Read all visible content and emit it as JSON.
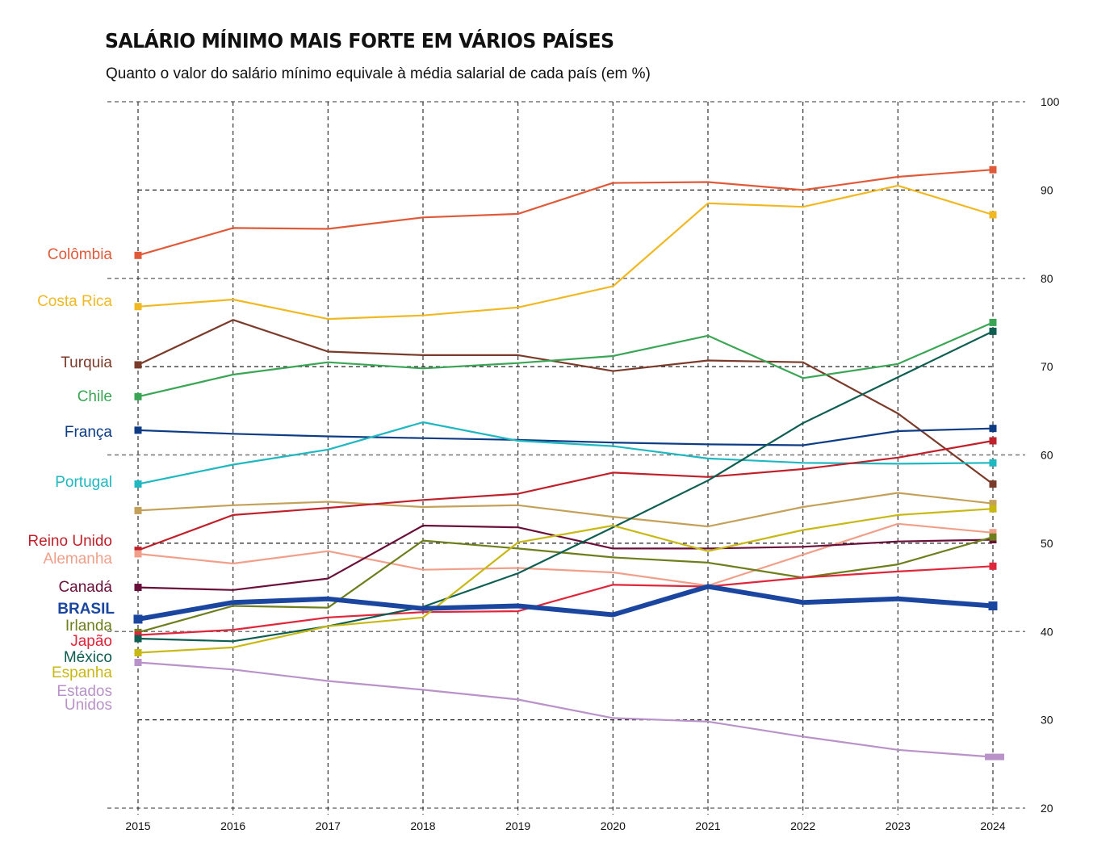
{
  "header": {
    "title": "SALÁRIO MÍNIMO MAIS FORTE EM VÁRIOS PAÍSES",
    "subtitle": "Quanto o valor do salário mínimo equivale à média salarial de cada país (em %)"
  },
  "chart_data": {
    "type": "line",
    "title": "SALÁRIO MÍNIMO MAIS FORTE EM VÁRIOS PAÍSES",
    "subtitle": "Quanto o valor do salário mínimo equivale à média salarial de cada país (em %)",
    "xlabel": "",
    "ylabel": "",
    "x": [
      "2015",
      "2016",
      "2017",
      "2018",
      "2019",
      "2020",
      "2021",
      "2022",
      "2023",
      "2024"
    ],
    "ylim": [
      20,
      100
    ],
    "yticks": [
      "100",
      "90",
      "80",
      "70",
      "60",
      "50",
      "40",
      "30",
      "20"
    ],
    "grid": true,
    "legend": "left (direct labels)",
    "series": [
      {
        "name": "Colômbia",
        "color": "#e05a3a",
        "values": [
          82.6,
          85.7,
          85.6,
          86.9,
          87.3,
          90.8,
          90.9,
          90.0,
          91.5,
          92.3
        ]
      },
      {
        "name": "Costa Rica",
        "color": "#f0b823",
        "values": [
          76.8,
          77.6,
          75.4,
          75.8,
          76.7,
          79.1,
          88.5,
          88.1,
          90.5,
          87.2
        ]
      },
      {
        "name": "Turquia",
        "color": "#7b3b2a",
        "values": [
          70.2,
          75.3,
          71.7,
          71.3,
          71.3,
          69.5,
          70.7,
          70.5,
          64.7,
          56.7
        ]
      },
      {
        "name": "Chile",
        "color": "#3aa655",
        "values": [
          66.6,
          69.1,
          70.5,
          69.8,
          70.4,
          71.2,
          73.5,
          68.7,
          70.3,
          75.0
        ]
      },
      {
        "name": "França",
        "color": "#0d3c85",
        "values": [
          62.8,
          62.4,
          62.1,
          61.9,
          61.7,
          61.4,
          61.2,
          61.1,
          62.7,
          63.0
        ]
      },
      {
        "name": "Portugal",
        "color": "#1fb8c0",
        "values": [
          56.7,
          58.9,
          60.6,
          63.7,
          61.6,
          61.0,
          59.6,
          59.1,
          59.0,
          59.1
        ]
      },
      {
        "name": "",
        "color": "#c4a15a",
        "values": [
          53.7,
          54.3,
          54.7,
          54.1,
          54.3,
          53.0,
          51.9,
          54.1,
          55.7,
          54.5
        ]
      },
      {
        "name": "Reino Unido",
        "color": "#c0202a",
        "values": [
          49.2,
          53.2,
          54.0,
          54.9,
          55.6,
          58.0,
          57.5,
          58.4,
          59.7,
          61.6
        ]
      },
      {
        "name": "Alemanha",
        "color": "#f0a08a",
        "values": [
          48.8,
          47.7,
          49.1,
          47.0,
          47.2,
          46.7,
          45.2,
          48.7,
          52.2,
          51.2
        ]
      },
      {
        "name": "Canadá",
        "color": "#6a0f3a",
        "values": [
          45.0,
          44.7,
          46.0,
          52.0,
          51.8,
          49.4,
          49.4,
          49.6,
          50.2,
          50.4
        ]
      },
      {
        "name": "Irlanda",
        "color": "#6e7e1c",
        "values": [
          39.9,
          42.9,
          42.7,
          50.3,
          49.4,
          48.4,
          47.8,
          46.1,
          47.6,
          50.7
        ]
      },
      {
        "name": "Japão",
        "color": "#e0263a",
        "values": [
          39.6,
          40.2,
          41.6,
          42.2,
          42.3,
          45.3,
          45.1,
          46.1,
          46.8,
          47.4
        ]
      },
      {
        "name": "México",
        "color": "#0e5e52",
        "values": [
          39.2,
          38.9,
          40.6,
          42.8,
          46.6,
          51.8,
          57.1,
          63.6,
          68.8,
          74.0
        ]
      },
      {
        "name": "Espanha",
        "color": "#c8b814",
        "values": [
          37.6,
          38.2,
          40.6,
          41.6,
          50.1,
          52.0,
          49.1,
          51.5,
          53.2,
          53.9
        ]
      },
      {
        "name": "Estados Unidos",
        "color": "#b892c8",
        "values": [
          36.5,
          35.7,
          34.4,
          33.4,
          32.3,
          30.2,
          29.8,
          28.1,
          26.6,
          25.8
        ]
      },
      {
        "name": "BRASIL",
        "color": "#1b46a0",
        "highlight": true,
        "values": [
          41.4,
          43.3,
          43.7,
          42.6,
          42.9,
          41.9,
          45.1,
          43.3,
          43.7,
          42.9
        ]
      }
    ],
    "labels": [
      {
        "text": "Colômbia",
        "series": "Colômbia"
      },
      {
        "text": "Costa Rica",
        "series": "Costa Rica"
      },
      {
        "text": "Turquia",
        "series": "Turquia"
      },
      {
        "text": "Chile",
        "series": "Chile"
      },
      {
        "text": "França",
        "series": "França"
      },
      {
        "text": "Portugal",
        "series": "Portugal"
      },
      {
        "text": "Reino Unido",
        "series": "Reino Unido"
      },
      {
        "text": "Alemanha",
        "series": "Alemanha"
      },
      {
        "text": "Canadá",
        "series": "Canadá"
      },
      {
        "text": "BRASIL",
        "series": "BRASIL"
      },
      {
        "text": "Irlanda",
        "series": "Irlanda"
      },
      {
        "text": "Japão",
        "series": "Japão"
      },
      {
        "text": "México",
        "series": "México"
      },
      {
        "text": "Espanha",
        "series": "Espanha"
      },
      {
        "text": "Estados",
        "series": "Estados Unidos"
      },
      {
        "text": "Unidos",
        "series": "Estados Unidos"
      }
    ]
  }
}
